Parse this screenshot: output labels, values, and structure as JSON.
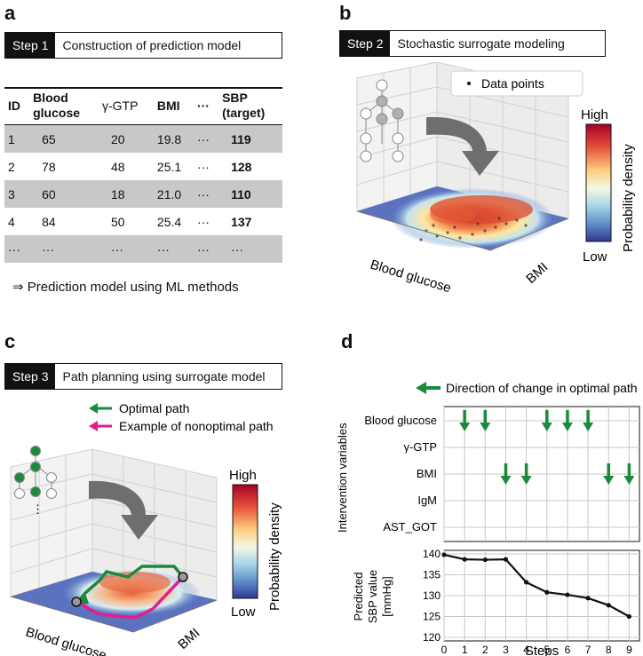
{
  "panels": {
    "a": {
      "letter": "a",
      "step_tag": "Step 1",
      "step_title": "Construction of prediction model",
      "table": {
        "headers": [
          "ID",
          "Blood glucose",
          "γ-GTP",
          "BMI",
          "···",
          "SBP (target)"
        ],
        "header_lines": [
          [
            "ID"
          ],
          [
            "Blood",
            "glucose"
          ],
          [
            "γ-GTP"
          ],
          [
            "BMI"
          ],
          [
            "···"
          ],
          [
            "SBP",
            "(target)"
          ]
        ],
        "rows": [
          [
            "1",
            "65",
            "20",
            "19.8",
            "···",
            "119"
          ],
          [
            "2",
            "78",
            "48",
            "25.1",
            "···",
            "128"
          ],
          [
            "3",
            "60",
            "18",
            "21.0",
            "···",
            "110"
          ],
          [
            "4",
            "84",
            "50",
            "25.4",
            "···",
            "137"
          ],
          [
            "···",
            "···",
            "···",
            "···",
            "···",
            "···"
          ]
        ]
      },
      "caption": "⇒ Prediction model using ML methods"
    },
    "b": {
      "letter": "b",
      "step_tag": "Step 2",
      "step_title": "Stochastic surrogate modeling",
      "legend": "Data points",
      "colorbar_high": "High",
      "colorbar_low": "Low",
      "colorbar_label": "Probability density",
      "xaxis": "Blood glucose",
      "yaxis": "BMI"
    },
    "c": {
      "letter": "c",
      "step_tag": "Step 3",
      "step_title": "Path planning using surrogate model",
      "legend_optimal": "Optimal path",
      "legend_nonoptimal": "Example of nonoptimal path",
      "colorbar_high": "High",
      "colorbar_low": "Low",
      "colorbar_label": "Probability density",
      "xaxis": "Blood glucose",
      "yaxis": "BMI",
      "tree_ellipsis": "⋮"
    },
    "d": {
      "letter": "d",
      "legend": "Direction of change in optimal path",
      "top_ylabel": "Intervention variables",
      "variables": [
        "Blood glucose",
        "γ-GTP",
        "BMI",
        "IgM",
        "AST_GOT"
      ],
      "bottom_ylabel_line1": "Predicted",
      "bottom_ylabel_line2": "SBP value",
      "bottom_ylabel_line3": "[mmHg]",
      "xlabel": "Steps"
    }
  },
  "colors": {
    "green": "#1a8a3c",
    "magenta": "#e0208c",
    "gray_arrow": "#6e6e6e",
    "table_shade": "#c8c8c8"
  },
  "chart_data": {
    "type": "line",
    "title": "",
    "xlabel": "Steps",
    "ylabel": "Predicted SBP value [mmHg]",
    "x": [
      0,
      1,
      2,
      3,
      4,
      5,
      6,
      7,
      8,
      9
    ],
    "values": [
      139.8,
      138.7,
      138.6,
      138.7,
      133.2,
      130.8,
      130.2,
      129.4,
      127.7,
      125.0
    ],
    "xlim": [
      0,
      9.5
    ],
    "ylim": [
      120,
      140
    ],
    "yticks": [
      120,
      125,
      130,
      135,
      140
    ],
    "xticks": [
      0,
      1,
      2,
      3,
      4,
      5,
      6,
      7,
      8,
      9
    ],
    "interventions": [
      {
        "step": 1,
        "variable": "Blood glucose"
      },
      {
        "step": 2,
        "variable": "Blood glucose"
      },
      {
        "step": 3,
        "variable": "BMI"
      },
      {
        "step": 4,
        "variable": "BMI"
      },
      {
        "step": 5,
        "variable": "Blood glucose"
      },
      {
        "step": 6,
        "variable": "Blood glucose"
      },
      {
        "step": 7,
        "variable": "Blood glucose"
      },
      {
        "step": 8,
        "variable": "BMI"
      },
      {
        "step": 9,
        "variable": "BMI"
      }
    ]
  }
}
